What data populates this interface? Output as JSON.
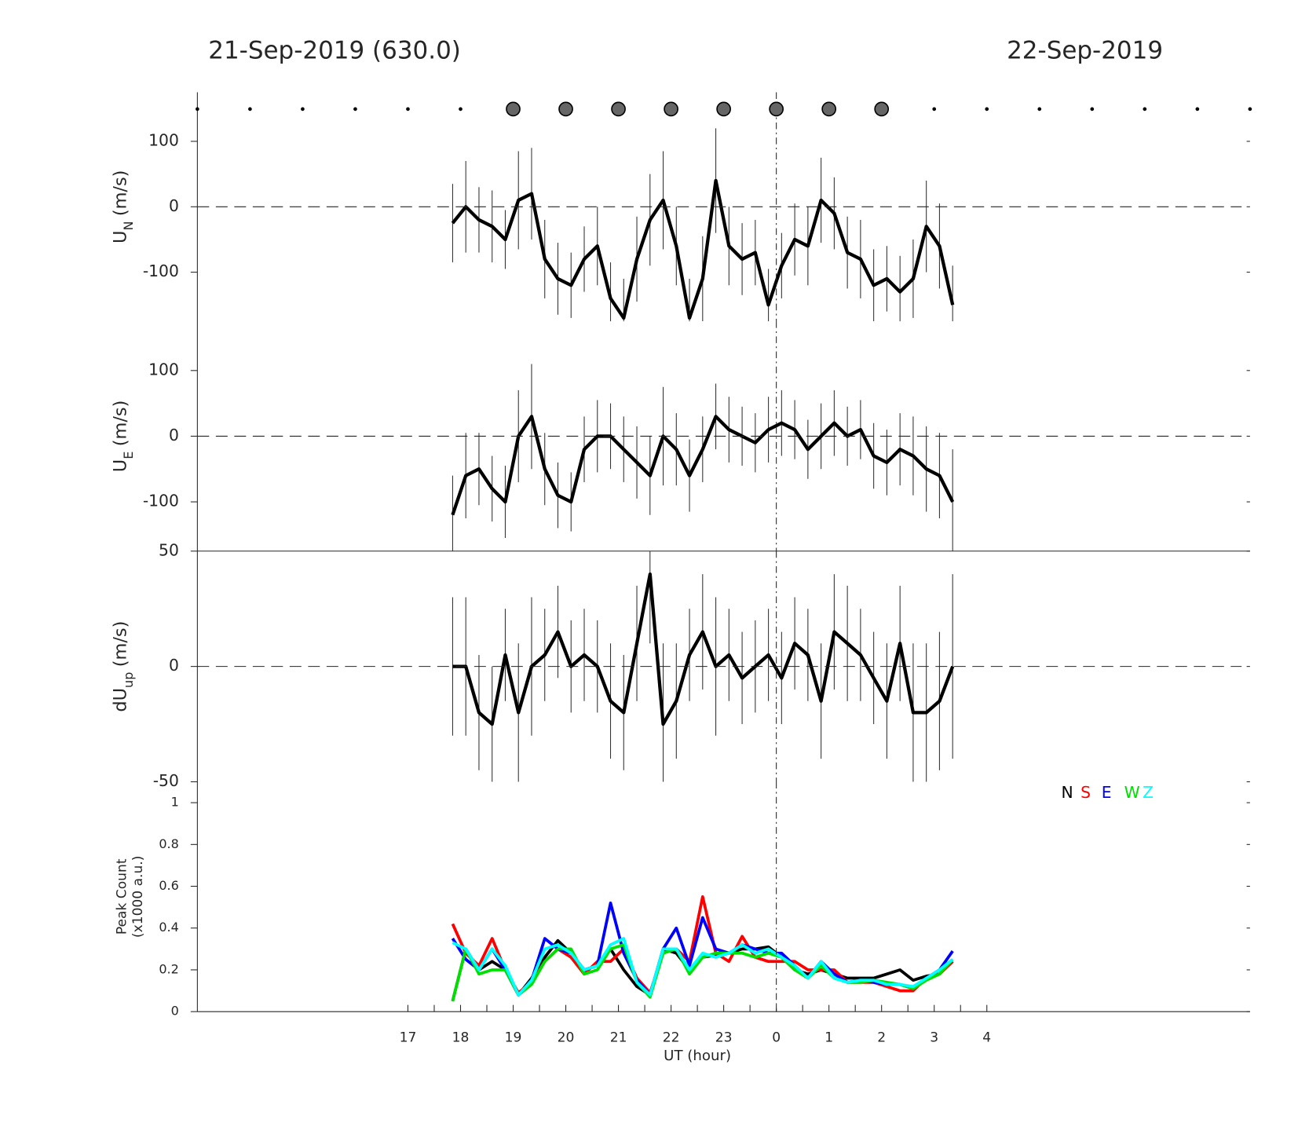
{
  "title_left": "21-Sep-2019 (630.0)",
  "title_right": "22-Sep-2019",
  "chart_data": [
    {
      "type": "errorline",
      "ylabel": "U",
      "ylabel_sub": "N",
      "ylabel_unit": "(m/s)",
      "xlim": [
        13,
        33
      ],
      "ylim": [
        -175,
        175
      ],
      "yticks": [
        -100,
        0,
        100
      ],
      "refline": 0,
      "vline": 24,
      "color": "#000000",
      "markers_small": [
        13,
        14,
        15,
        16,
        17,
        18,
        27,
        28,
        29,
        30,
        31,
        32,
        33
      ],
      "markers_large": [
        19,
        20,
        21,
        22,
        23,
        24,
        25,
        26
      ],
      "x": [
        17.85,
        18.1,
        18.35,
        18.6,
        18.85,
        19.1,
        19.35,
        19.6,
        19.85,
        20.1,
        20.35,
        20.6,
        20.85,
        21.1,
        21.35,
        21.6,
        21.85,
        22.1,
        22.35,
        22.6,
        22.85,
        23.1,
        23.35,
        23.6,
        23.85,
        24.1,
        24.35,
        24.6,
        24.85,
        25.1,
        25.35,
        25.6,
        25.85,
        26.1,
        26.35,
        26.6,
        26.85,
        27.1,
        27.35
      ],
      "values": [
        -25,
        0,
        -20,
        -30,
        -50,
        10,
        20,
        -80,
        -110,
        -120,
        -80,
        -60,
        -140,
        -170,
        -80,
        -20,
        10,
        -60,
        -170,
        -110,
        40,
        -60,
        -80,
        -70,
        -150,
        -90,
        -50,
        -60,
        10,
        -10,
        -70,
        -80,
        -120,
        -110,
        -130,
        -110,
        -30,
        -60,
        -150
      ],
      "errors": [
        60,
        70,
        50,
        55,
        45,
        75,
        70,
        60,
        55,
        50,
        50,
        60,
        55,
        60,
        65,
        70,
        75,
        60,
        60,
        65,
        80,
        60,
        55,
        50,
        55,
        50,
        55,
        60,
        65,
        55,
        55,
        60,
        55,
        50,
        55,
        60,
        70,
        65,
        60
      ]
    },
    {
      "type": "errorline",
      "ylabel": "U",
      "ylabel_sub": "E",
      "ylabel_unit": "(m/s)",
      "xlim": [
        13,
        33
      ],
      "ylim": [
        -175,
        175
      ],
      "yticks": [
        -100,
        0,
        100
      ],
      "refline": 0,
      "vline": 24,
      "color": "#000000",
      "x": [
        17.85,
        18.1,
        18.35,
        18.6,
        18.85,
        19.1,
        19.35,
        19.6,
        19.85,
        20.1,
        20.35,
        20.6,
        20.85,
        21.1,
        21.35,
        21.6,
        21.85,
        22.1,
        22.35,
        22.6,
        22.85,
        23.1,
        23.35,
        23.6,
        23.85,
        24.1,
        24.35,
        24.6,
        24.85,
        25.1,
        25.35,
        25.6,
        25.85,
        26.1,
        26.35,
        26.6,
        26.85,
        27.1,
        27.35
      ],
      "values": [
        -120,
        -60,
        -50,
        -80,
        -100,
        0,
        30,
        -50,
        -90,
        -100,
        -20,
        0,
        0,
        -20,
        -40,
        -60,
        0,
        -20,
        -60,
        -20,
        30,
        10,
        0,
        -10,
        10,
        20,
        10,
        -20,
        0,
        20,
        0,
        10,
        -30,
        -40,
        -20,
        -30,
        -50,
        -60,
        -100
      ],
      "errors": [
        60,
        65,
        55,
        50,
        55,
        70,
        80,
        55,
        50,
        45,
        50,
        55,
        50,
        50,
        55,
        60,
        75,
        55,
        55,
        50,
        50,
        50,
        45,
        45,
        50,
        50,
        45,
        45,
        50,
        50,
        45,
        45,
        50,
        50,
        55,
        60,
        65,
        65,
        80
      ]
    },
    {
      "type": "errorline",
      "ylabel": "dU",
      "ylabel_sub": "up",
      "ylabel_unit": "(m/s)",
      "xlim": [
        13,
        33
      ],
      "ylim": [
        -50,
        50
      ],
      "yticks": [
        -50,
        0,
        50
      ],
      "refline": 0,
      "vline": 24,
      "color": "#000000",
      "x": [
        17.85,
        18.1,
        18.35,
        18.6,
        18.85,
        19.1,
        19.35,
        19.6,
        19.85,
        20.1,
        20.35,
        20.6,
        20.85,
        21.1,
        21.35,
        21.6,
        21.85,
        22.1,
        22.35,
        22.6,
        22.85,
        23.1,
        23.35,
        23.6,
        23.85,
        24.1,
        24.35,
        24.6,
        24.85,
        25.1,
        25.35,
        25.6,
        25.85,
        26.1,
        26.35,
        26.6,
        26.85,
        27.1,
        27.35
      ],
      "values": [
        0,
        0,
        -20,
        -25,
        5,
        -20,
        0,
        5,
        15,
        0,
        5,
        0,
        -15,
        -20,
        10,
        40,
        -25,
        -15,
        5,
        15,
        0,
        5,
        -5,
        0,
        5,
        -5,
        10,
        5,
        -15,
        15,
        10,
        5,
        -5,
        -15,
        10,
        -20,
        -20,
        -15,
        0
      ],
      "errors": [
        30,
        30,
        25,
        25,
        20,
        30,
        30,
        20,
        20,
        20,
        20,
        20,
        25,
        25,
        25,
        30,
        35,
        25,
        20,
        25,
        30,
        20,
        20,
        20,
        20,
        20,
        20,
        20,
        25,
        25,
        25,
        20,
        20,
        25,
        25,
        30,
        30,
        30,
        40
      ]
    },
    {
      "type": "line",
      "ylabel": "Peak Count",
      "ylabel2": "(x1000 a.u.)",
      "xlabel": "UT (hour)",
      "xlim": [
        13,
        33
      ],
      "ylim": [
        0,
        1.1
      ],
      "yticks": [
        0,
        0.2,
        0.4,
        0.6,
        0.8,
        1
      ],
      "vline": 24,
      "xticks": [
        17,
        18,
        19,
        20,
        21,
        22,
        23,
        {
          "value": 24,
          "label": "0"
        },
        {
          "value": 25,
          "label": "1"
        },
        {
          "value": 26,
          "label": "2"
        },
        {
          "value": 27,
          "label": "3"
        },
        {
          "value": 28,
          "label": "4"
        }
      ],
      "xminorticks": [
        17.5,
        18.5,
        19.5,
        20.5,
        21.5,
        22.5,
        23.5,
        24.5,
        25.5,
        26.5,
        27.5
      ],
      "x": [
        17.85,
        18.1,
        18.35,
        18.6,
        18.85,
        19.1,
        19.35,
        19.6,
        19.85,
        20.1,
        20.35,
        20.6,
        20.85,
        21.1,
        21.35,
        21.6,
        21.85,
        22.1,
        22.35,
        22.6,
        22.85,
        23.1,
        23.35,
        23.6,
        23.85,
        24.1,
        24.35,
        24.6,
        24.85,
        25.1,
        25.35,
        25.6,
        25.85,
        26.1,
        26.35,
        26.6,
        26.85,
        27.1,
        27.35
      ],
      "series": [
        {
          "name": "N",
          "color": "#000000",
          "values": [
            0.05,
            0.3,
            0.2,
            0.24,
            0.2,
            0.08,
            0.16,
            0.26,
            0.34,
            0.28,
            0.2,
            0.22,
            0.3,
            0.2,
            0.12,
            0.08,
            0.3,
            0.28,
            0.2,
            0.26,
            0.27,
            0.28,
            0.3,
            0.3,
            0.31,
            0.26,
            0.2,
            0.18,
            0.2,
            0.18,
            0.16,
            0.16,
            0.16,
            0.18,
            0.2,
            0.15,
            0.17,
            0.18,
            0.24
          ]
        },
        {
          "name": "S",
          "color": "#ff0000",
          "values": [
            0.42,
            0.28,
            0.22,
            0.35,
            0.2,
            0.09,
            0.14,
            0.24,
            0.3,
            0.26,
            0.18,
            0.24,
            0.24,
            0.3,
            0.16,
            0.09,
            0.28,
            0.3,
            0.24,
            0.55,
            0.28,
            0.24,
            0.36,
            0.26,
            0.24,
            0.24,
            0.24,
            0.2,
            0.2,
            0.2,
            0.14,
            0.14,
            0.14,
            0.12,
            0.1,
            0.1,
            0.16,
            0.18,
            0.24
          ]
        },
        {
          "name": "E",
          "color": "#0000ff",
          "values": [
            0.35,
            0.25,
            0.2,
            0.3,
            0.2,
            0.08,
            0.15,
            0.35,
            0.3,
            0.28,
            0.2,
            0.22,
            0.52,
            0.28,
            0.15,
            0.08,
            0.3,
            0.4,
            0.22,
            0.45,
            0.3,
            0.28,
            0.32,
            0.3,
            0.28,
            0.28,
            0.22,
            0.16,
            0.24,
            0.18,
            0.14,
            0.15,
            0.14,
            0.13,
            0.13,
            0.11,
            0.16,
            0.2,
            0.29
          ]
        },
        {
          "name": "W",
          "color": "#00e000",
          "values": [
            0.05,
            0.3,
            0.18,
            0.2,
            0.2,
            0.08,
            0.13,
            0.24,
            0.3,
            0.3,
            0.18,
            0.2,
            0.3,
            0.32,
            0.14,
            0.07,
            0.28,
            0.3,
            0.18,
            0.26,
            0.28,
            0.28,
            0.28,
            0.26,
            0.28,
            0.26,
            0.2,
            0.16,
            0.22,
            0.16,
            0.14,
            0.14,
            0.15,
            0.14,
            0.13,
            0.11,
            0.15,
            0.18,
            0.25
          ]
        },
        {
          "name": "Z",
          "color": "#00ffff",
          "values": [
            0.33,
            0.3,
            0.2,
            0.3,
            0.22,
            0.08,
            0.15,
            0.3,
            0.32,
            0.28,
            0.2,
            0.22,
            0.32,
            0.35,
            0.14,
            0.08,
            0.3,
            0.3,
            0.2,
            0.28,
            0.26,
            0.28,
            0.32,
            0.28,
            0.3,
            0.26,
            0.22,
            0.16,
            0.24,
            0.16,
            0.14,
            0.15,
            0.15,
            0.13,
            0.13,
            0.12,
            0.16,
            0.2,
            0.25
          ]
        }
      ]
    }
  ]
}
